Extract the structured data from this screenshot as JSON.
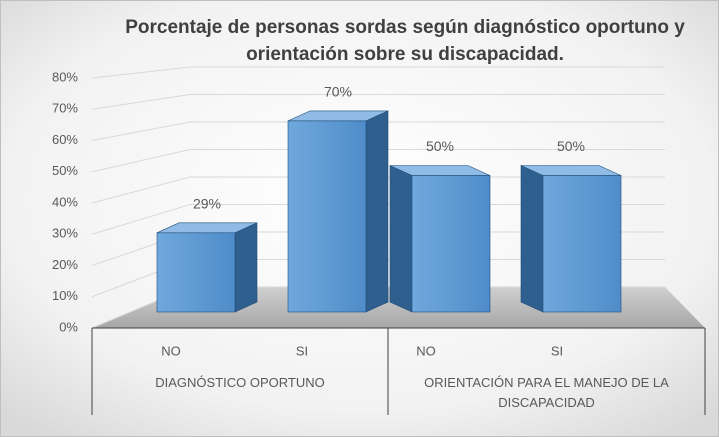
{
  "chart_data": {
    "type": "bar3d",
    "title": "Porcentaje de personas sordas según diagnóstico oportuno y orientación sobre su discapacidad.",
    "categories": [
      "NO",
      "SI",
      "NO",
      "SI"
    ],
    "groups": [
      "DIAGNÓSTICO OPORTUNO",
      "ORIENTACIÓN PARA EL MANEJO DE LA DISCAPACIDAD"
    ],
    "values": [
      29,
      70,
      50,
      50
    ],
    "value_labels": [
      "29%",
      "70%",
      "50%",
      "50%"
    ],
    "color": "#5b9bd5",
    "ylim": [
      0,
      80
    ],
    "yticks": [
      {
        "value": 0,
        "label": "0%"
      },
      {
        "value": 10,
        "label": "10%"
      },
      {
        "value": 20,
        "label": "20%"
      },
      {
        "value": 30,
        "label": "30%"
      },
      {
        "value": 40,
        "label": "40%"
      },
      {
        "value": 50,
        "label": "50%"
      },
      {
        "value": 60,
        "label": "60%"
      },
      {
        "value": 70,
        "label": "70%"
      },
      {
        "value": 80,
        "label": "80%"
      }
    ],
    "grid": true
  }
}
